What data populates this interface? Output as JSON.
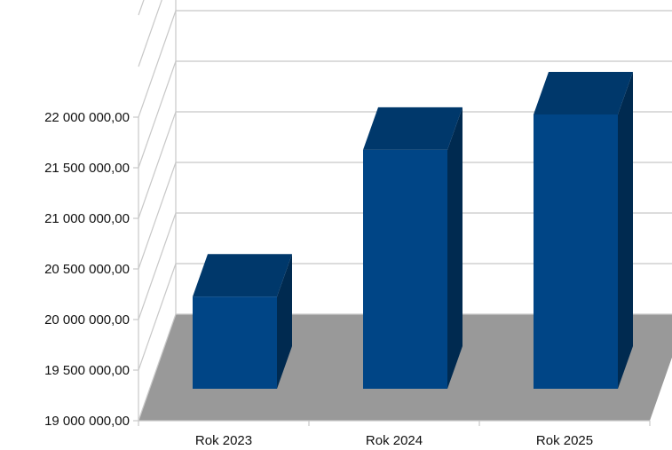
{
  "chart_data": {
    "type": "bar",
    "categories": [
      "Rok 2023",
      "Rok 2024",
      "Rok 2025"
    ],
    "values": [
      20200000,
      21650000,
      22000000
    ],
    "ylim": [
      19000000,
      22500000
    ],
    "yticks": [
      {
        "value": 19000000,
        "label": "19 000 000,00"
      },
      {
        "value": 19500000,
        "label": "19 500 000,00"
      },
      {
        "value": 20000000,
        "label": "20 000 000,00"
      },
      {
        "value": 20500000,
        "label": "20 500 000,00"
      },
      {
        "value": 21000000,
        "label": "21 000 000,00"
      },
      {
        "value": 21500000,
        "label": "21 500 000,00"
      },
      {
        "value": 22000000,
        "label": "22 000 000,00"
      }
    ],
    "grid": true,
    "legend": "none",
    "colors": {
      "bar_front": "#004586",
      "bar_top": "#00386b",
      "bar_side": "#002a50",
      "floor": "#999999",
      "grid": "#c8c8c8"
    }
  }
}
